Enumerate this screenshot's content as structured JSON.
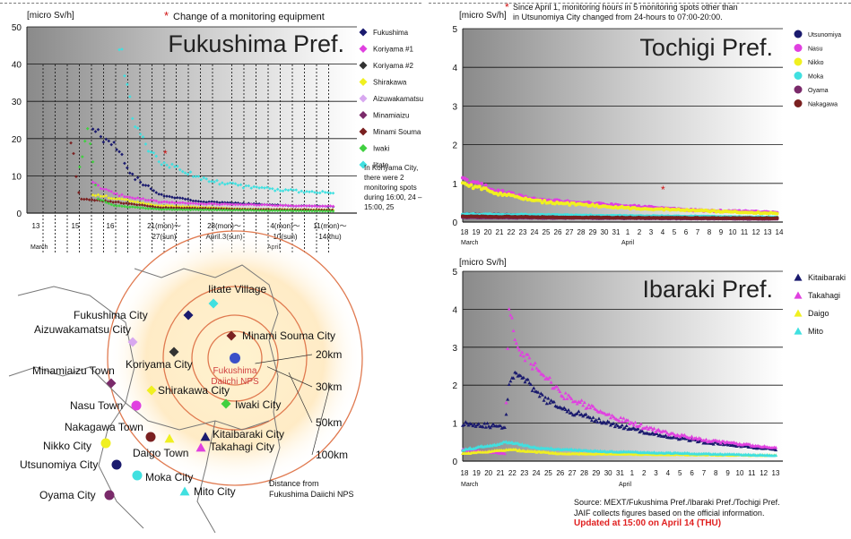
{
  "chart_data": [
    {
      "type": "scatter",
      "id": "fukushima",
      "title": "Fukushima Pref.",
      "ylabel": "[micro Sv/h]",
      "ylim": [
        0,
        50
      ],
      "yticks": [
        "0",
        "10",
        "20",
        "30",
        "40",
        "50"
      ],
      "annotation_top": "Change of a monitoring equipment",
      "date_labels": [
        "13",
        "15",
        "16",
        "21(mon)～",
        "27(sun)",
        "28(mon)～",
        "April.3(sun)",
        "4(mon)～",
        "10(sun)",
        "11(mon)～",
        "14(thu)"
      ],
      "month_labels": [
        "March",
        "April"
      ],
      "series": [
        {
          "name": "Fukushima",
          "color": "#1a1a6e",
          "marker": "diamond"
        },
        {
          "name": "Koriyama #1",
          "color": "#e040e0",
          "marker": "diamond"
        },
        {
          "name": "Koriyama #2",
          "color": "#333333",
          "marker": "diamond"
        },
        {
          "name": "Shirakawa",
          "color": "#f0f020",
          "marker": "diamond"
        },
        {
          "name": "Aizuwakamatsu",
          "color": "#d8a8f0",
          "marker": "diamond"
        },
        {
          "name": "Minamiaizu",
          "color": "#7a2a6a",
          "marker": "diamond"
        },
        {
          "name": "Minami Souma",
          "color": "#7a2020",
          "marker": "diamond"
        },
        {
          "name": "Iwaki",
          "color": "#40d040",
          "marker": "diamond"
        },
        {
          "name": "Iitate",
          "color": "#40e0e0",
          "marker": "diamond"
        }
      ],
      "approx_curves": {
        "Iitate": [
          [
            21,
            44
          ],
          [
            22,
            40
          ],
          [
            24,
            25
          ],
          [
            26,
            20
          ],
          [
            30,
            14
          ],
          [
            40,
            9
          ],
          [
            50,
            7
          ],
          [
            60,
            6
          ],
          [
            70,
            5.5
          ]
        ],
        "Fukushima": [
          [
            15,
            24
          ],
          [
            17,
            20
          ],
          [
            20,
            19
          ],
          [
            24,
            10
          ],
          [
            30,
            5
          ],
          [
            40,
            3
          ],
          [
            50,
            2.5
          ],
          [
            60,
            2
          ],
          [
            70,
            1.8
          ]
        ],
        "Koriyama #1": [
          [
            15,
            8
          ],
          [
            20,
            5
          ],
          [
            30,
            3
          ],
          [
            40,
            2.5
          ],
          [
            60,
            2
          ],
          [
            70,
            1.8
          ]
        ],
        "Minami Souma": [
          [
            10,
            20
          ],
          [
            12,
            4
          ],
          [
            20,
            3
          ],
          [
            30,
            1.5
          ],
          [
            50,
            1
          ],
          [
            70,
            0.8
          ]
        ],
        "Iwaki": [
          [
            12,
            12
          ],
          [
            14,
            23
          ],
          [
            16,
            4
          ],
          [
            20,
            2
          ],
          [
            30,
            1
          ],
          [
            70,
            0.5
          ]
        ],
        "Shirakawa": [
          [
            15,
            5
          ],
          [
            20,
            4
          ],
          [
            30,
            2
          ],
          [
            50,
            1
          ],
          [
            70,
            0.8
          ]
        ]
      },
      "note": "In Koriyama City, there were 2 monitoring spots during 16:00, 24 – 15:00, 25"
    },
    {
      "type": "scatter",
      "id": "tochigi",
      "title": "Tochigi Pref.",
      "ylabel": "[micro Sv/h]",
      "ylim": [
        0,
        5
      ],
      "yticks": [
        "0",
        "1",
        "2",
        "3",
        "4",
        "5"
      ],
      "annotation_top": "Since April 1, monitoring hours in 5 monitoring spots other than in Utsunomiya City changed from 24-hours to 07:00-20:00.",
      "xtick_labels": [
        "18",
        "19",
        "20",
        "21",
        "22",
        "23",
        "24",
        "25",
        "26",
        "27",
        "28",
        "29",
        "30",
        "31",
        "1",
        "2",
        "3",
        "4",
        "5",
        "6",
        "7",
        "8",
        "9",
        "10",
        "11",
        "12",
        "13",
        "14"
      ],
      "month_labels": [
        "March",
        "April"
      ],
      "series": [
        {
          "name": "Utsunomiya",
          "color": "#1a1a6e",
          "marker": "circle"
        },
        {
          "name": "Nasu",
          "color": "#e040e0",
          "marker": "circle"
        },
        {
          "name": "Nikko",
          "color": "#f0f020",
          "marker": "circle"
        },
        {
          "name": "Moka",
          "color": "#40e0e0",
          "marker": "circle"
        },
        {
          "name": "Oyama",
          "color": "#7a2a6a",
          "marker": "circle"
        },
        {
          "name": "Nakagawa",
          "color": "#7a2020",
          "marker": "circle"
        }
      ],
      "approx_curves": {
        "Nasu": [
          [
            0,
            1.1
          ],
          [
            3,
            0.8
          ],
          [
            6,
            0.6
          ],
          [
            10,
            0.5
          ],
          [
            15,
            0.4
          ],
          [
            20,
            0.3
          ],
          [
            27,
            0.25
          ]
        ],
        "Nikko": [
          [
            0,
            1.0
          ],
          [
            3,
            0.75
          ],
          [
            6,
            0.55
          ],
          [
            10,
            0.45
          ],
          [
            15,
            0.35
          ],
          [
            20,
            0.3
          ],
          [
            27,
            0.22
          ]
        ],
        "Utsunomiya": [
          [
            0,
            0.2
          ],
          [
            10,
            0.15
          ],
          [
            27,
            0.1
          ]
        ],
        "Nakagawa": [
          [
            0,
            0.15
          ],
          [
            10,
            0.12
          ],
          [
            27,
            0.1
          ]
        ],
        "Moka": [
          [
            0,
            0.2
          ],
          [
            27,
            0.12
          ]
        ],
        "Oyama": [
          [
            0,
            0.12
          ],
          [
            27,
            0.08
          ]
        ]
      }
    },
    {
      "type": "scatter",
      "id": "ibaraki",
      "title": "Ibaraki Pref.",
      "ylabel": "[micro Sv/h]",
      "ylim": [
        0,
        5
      ],
      "yticks": [
        "0",
        "1",
        "2",
        "3",
        "4",
        "5"
      ],
      "xtick_labels": [
        "18",
        "19",
        "20",
        "21",
        "22",
        "23",
        "24",
        "25",
        "26",
        "27",
        "28",
        "29",
        "30",
        "31",
        "1",
        "2",
        "3",
        "4",
        "5",
        "6",
        "7",
        "8",
        "9",
        "10",
        "11",
        "12",
        "13"
      ],
      "month_labels": [
        "March",
        "April"
      ],
      "series": [
        {
          "name": "Kitaibaraki",
          "color": "#1a1a6e",
          "marker": "triangle"
        },
        {
          "name": "Takahagi",
          "color": "#e040e0",
          "marker": "triangle"
        },
        {
          "name": "Daigo",
          "color": "#f0f020",
          "marker": "triangle"
        },
        {
          "name": "Mito",
          "color": "#40e0e0",
          "marker": "triangle"
        }
      ],
      "approx_curves": {
        "Takahagi": [
          [
            0,
            0.3
          ],
          [
            3.5,
            0.2
          ],
          [
            3.8,
            4.1
          ],
          [
            4.5,
            3.0
          ],
          [
            6,
            2.5
          ],
          [
            8,
            1.8
          ],
          [
            12,
            1.2
          ],
          [
            16,
            0.8
          ],
          [
            20,
            0.55
          ],
          [
            26,
            0.35
          ]
        ],
        "Kitaibaraki": [
          [
            0,
            1.0
          ],
          [
            3.5,
            0.9
          ],
          [
            3.8,
            2.0
          ],
          [
            4.5,
            2.4
          ],
          [
            6,
            1.8
          ],
          [
            8,
            1.4
          ],
          [
            12,
            1.0
          ],
          [
            16,
            0.7
          ],
          [
            20,
            0.5
          ],
          [
            26,
            0.3
          ]
        ],
        "Mito": [
          [
            0,
            0.3
          ],
          [
            3.8,
            0.5
          ],
          [
            6,
            0.35
          ],
          [
            12,
            0.25
          ],
          [
            26,
            0.15
          ]
        ],
        "Daigo": [
          [
            0,
            0.2
          ],
          [
            4,
            0.3
          ],
          [
            8,
            0.2
          ],
          [
            26,
            0.15
          ]
        ]
      }
    }
  ],
  "map": {
    "cities": [
      {
        "name": "Fukushima City",
        "color": "#1a1a6e",
        "marker": "diamond"
      },
      {
        "name": "Iitate Village",
        "color": "#40e0e0",
        "marker": "diamond"
      },
      {
        "name": "Minami Souma City",
        "color": "#7a2020",
        "marker": "diamond"
      },
      {
        "name": "Aizuwakamatsu City",
        "color": "#d8a8f0",
        "marker": "diamond"
      },
      {
        "name": "Koriyama City",
        "color": "#333333",
        "marker": "diamond"
      },
      {
        "name": "Minamiaizu Town",
        "color": "#7a2a6a",
        "marker": "diamond"
      },
      {
        "name": "Shirakawa City",
        "color": "#f0f020",
        "marker": "diamond"
      },
      {
        "name": "Iwaki City",
        "color": "#40d040",
        "marker": "diamond"
      },
      {
        "name": "Nasu Town",
        "color": "#e040e0",
        "marker": "circle"
      },
      {
        "name": "Nakagawa Town",
        "color": "#7a2020",
        "marker": "circle"
      },
      {
        "name": "Nikko City",
        "color": "#f0f020",
        "marker": "circle"
      },
      {
        "name": "Utsunomiya City",
        "color": "#1a1a6e",
        "marker": "circle"
      },
      {
        "name": "Oyama City",
        "color": "#7a2a6a",
        "marker": "circle"
      },
      {
        "name": "Moka City",
        "color": "#40e0e0",
        "marker": "circle"
      },
      {
        "name": "Kitaibaraki City",
        "color": "#1a1a6e",
        "marker": "triangle"
      },
      {
        "name": "Takahagi City",
        "color": "#e040e0",
        "marker": "triangle"
      },
      {
        "name": "Daigo Town",
        "color": "#f0f020",
        "marker": "triangle"
      },
      {
        "name": "Mito City",
        "color": "#40e0e0",
        "marker": "triangle"
      }
    ],
    "plant_line1": "Fukushima",
    "plant_line2": "Daiichi NPS",
    "rings": [
      "20km",
      "30km",
      "50km",
      "100km"
    ],
    "distance_note_line1": "Distance from",
    "distance_note_line2": "Fukushima Daiichi NPS"
  },
  "source": {
    "line1": "Source: MEXT/Fukushima Pref./Ibaraki Pref./Tochigi Pref.",
    "line2": "JAIF collects figures based on the official information.",
    "updated": "Updated at 15:00 on April 14 (THU)"
  }
}
